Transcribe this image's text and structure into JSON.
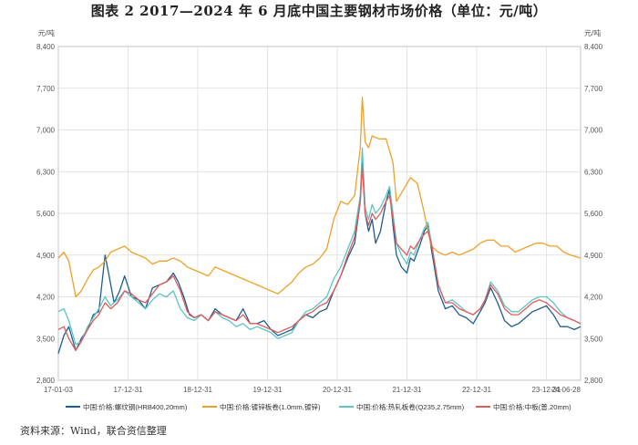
{
  "title": "图表 2   2017—2024 年 6 月底中国主要钢材市场价格（单位：元/吨）",
  "source": "资料来源：Wind，联合资信整理",
  "chart_data": {
    "type": "line",
    "unit_left": "元/吨",
    "unit_right": "元/吨",
    "ylim": [
      2800,
      8400
    ],
    "yticks": [
      "2,800",
      "3,500",
      "4,200",
      "4,900",
      "5,600",
      "6,300",
      "7,000",
      "7,700",
      "8,400"
    ],
    "ytick_values": [
      2800,
      3500,
      4200,
      4900,
      5600,
      6300,
      7000,
      7700,
      8400
    ],
    "xticks": [
      "17-01-03",
      "17-12-31",
      "18-12-31",
      "19-12-31",
      "20-12-31",
      "21-12-31",
      "22-12-31",
      "23-12-31",
      "24-06-28"
    ],
    "xtick_values": [
      2017.0,
      2018.0,
      2019.0,
      2020.0,
      2021.0,
      2022.0,
      2023.0,
      2024.0,
      2024.49
    ],
    "xlim": [
      2017.0,
      2024.49
    ],
    "grid": true,
    "legend_position": "bottom",
    "series": [
      {
        "name": "中国:价格:螺纹钢(HRB400,20mm)",
        "color": "#1f5d8f",
        "x": [
          2017.0,
          2017.08,
          2017.15,
          2017.25,
          2017.33,
          2017.42,
          2017.5,
          2017.58,
          2017.67,
          2017.72,
          2017.8,
          2017.88,
          2017.95,
          2018.05,
          2018.15,
          2018.25,
          2018.35,
          2018.45,
          2018.55,
          2018.65,
          2018.72,
          2018.8,
          2018.88,
          2018.95,
          2019.05,
          2019.15,
          2019.25,
          2019.35,
          2019.45,
          2019.55,
          2019.65,
          2019.75,
          2019.85,
          2019.95,
          2020.05,
          2020.15,
          2020.25,
          2020.35,
          2020.45,
          2020.55,
          2020.65,
          2020.75,
          2020.85,
          2020.95,
          2021.05,
          2021.15,
          2021.25,
          2021.33,
          2021.36,
          2021.4,
          2021.45,
          2021.5,
          2021.55,
          2021.62,
          2021.7,
          2021.75,
          2021.8,
          2021.85,
          2021.92,
          2022.0,
          2022.05,
          2022.1,
          2022.18,
          2022.25,
          2022.3,
          2022.35,
          2022.45,
          2022.55,
          2022.65,
          2022.75,
          2022.85,
          2022.95,
          2023.05,
          2023.12,
          2023.2,
          2023.3,
          2023.4,
          2023.5,
          2023.6,
          2023.7,
          2023.8,
          2023.9,
          2024.0,
          2024.1,
          2024.2,
          2024.3,
          2024.4,
          2024.49
        ],
        "y": [
          3250,
          3550,
          3700,
          3300,
          3500,
          3650,
          3900,
          3950,
          4900,
          4600,
          4100,
          4300,
          4550,
          4200,
          4150,
          4000,
          4350,
          4400,
          4450,
          4600,
          4450,
          4200,
          3900,
          3850,
          3900,
          3800,
          4000,
          3900,
          3850,
          3800,
          4000,
          3750,
          3750,
          3800,
          3650,
          3550,
          3600,
          3650,
          3800,
          3900,
          3850,
          3950,
          4000,
          4300,
          4550,
          4850,
          5100,
          5800,
          6500,
          5600,
          5300,
          5500,
          5100,
          5300,
          5800,
          6000,
          5400,
          4900,
          4700,
          4600,
          4850,
          4800,
          5050,
          5300,
          5400,
          5000,
          4300,
          4000,
          4050,
          3900,
          3850,
          3750,
          3950,
          4100,
          4350,
          4100,
          3800,
          3700,
          3750,
          3850,
          3950,
          4000,
          4050,
          3900,
          3700,
          3700,
          3650,
          3700
        ]
      },
      {
        "name": "中国:价格:镀锌板卷(1.0mm,镀锌)",
        "color": "#f0a028",
        "x": [
          2017.0,
          2017.08,
          2017.15,
          2017.25,
          2017.33,
          2017.42,
          2017.5,
          2017.58,
          2017.67,
          2017.75,
          2017.85,
          2017.95,
          2018.05,
          2018.15,
          2018.25,
          2018.35,
          2018.45,
          2018.55,
          2018.65,
          2018.75,
          2018.85,
          2018.95,
          2019.05,
          2019.15,
          2019.25,
          2019.35,
          2019.45,
          2019.55,
          2019.65,
          2019.75,
          2019.85,
          2019.95,
          2020.05,
          2020.15,
          2020.25,
          2020.35,
          2020.45,
          2020.55,
          2020.65,
          2020.75,
          2020.85,
          2020.95,
          2021.05,
          2021.15,
          2021.25,
          2021.33,
          2021.36,
          2021.4,
          2021.45,
          2021.5,
          2021.6,
          2021.7,
          2021.8,
          2021.85,
          2021.95,
          2022.05,
          2022.15,
          2022.25,
          2022.3,
          2022.35,
          2022.45,
          2022.55,
          2022.65,
          2022.75,
          2022.85,
          2022.95,
          2023.05,
          2023.15,
          2023.25,
          2023.35,
          2023.45,
          2023.55,
          2023.65,
          2023.75,
          2023.85,
          2023.95,
          2024.05,
          2024.15,
          2024.25,
          2024.35,
          2024.49
        ],
        "y": [
          4850,
          4950,
          4800,
          4200,
          4300,
          4500,
          4650,
          4700,
          4800,
          4950,
          5000,
          5050,
          4950,
          4900,
          4850,
          4750,
          4800,
          4800,
          4850,
          4800,
          4700,
          4650,
          4600,
          4550,
          4700,
          4650,
          4600,
          4550,
          4500,
          4450,
          4400,
          4350,
          4300,
          4250,
          4350,
          4450,
          4600,
          4700,
          4750,
          4850,
          5000,
          5500,
          5800,
          5750,
          5900,
          6700,
          7550,
          6800,
          6700,
          6900,
          6850,
          6850,
          6450,
          5800,
          6000,
          6200,
          6100,
          5600,
          5300,
          5050,
          4950,
          4900,
          4950,
          4900,
          4950,
          5000,
          5100,
          5150,
          5150,
          5050,
          5050,
          4950,
          5000,
          5050,
          5100,
          5100,
          5050,
          5050,
          4950,
          4900,
          4850
        ]
      },
      {
        "name": "中国:价格:热轧板卷(Q235,2.75mm)",
        "color": "#5cc4c4",
        "x": [
          2017.0,
          2017.08,
          2017.15,
          2017.25,
          2017.33,
          2017.42,
          2017.5,
          2017.58,
          2017.67,
          2017.75,
          2017.85,
          2017.95,
          2018.05,
          2018.15,
          2018.25,
          2018.35,
          2018.45,
          2018.55,
          2018.65,
          2018.75,
          2018.85,
          2018.95,
          2019.05,
          2019.15,
          2019.25,
          2019.35,
          2019.45,
          2019.55,
          2019.65,
          2019.75,
          2019.85,
          2019.95,
          2020.05,
          2020.15,
          2020.25,
          2020.35,
          2020.45,
          2020.55,
          2020.65,
          2020.75,
          2020.85,
          2020.95,
          2021.05,
          2021.15,
          2021.25,
          2021.33,
          2021.36,
          2021.4,
          2021.45,
          2021.5,
          2021.55,
          2021.62,
          2021.7,
          2021.75,
          2021.8,
          2021.85,
          2021.92,
          2022.0,
          2022.05,
          2022.1,
          2022.18,
          2022.25,
          2022.3,
          2022.35,
          2022.45,
          2022.55,
          2022.65,
          2022.75,
          2022.85,
          2022.95,
          2023.05,
          2023.12,
          2023.2,
          2023.3,
          2023.4,
          2023.5,
          2023.6,
          2023.7,
          2023.8,
          2023.9,
          2024.0,
          2024.1,
          2024.2,
          2024.3,
          2024.4,
          2024.49
        ],
        "y": [
          3950,
          4000,
          3800,
          3400,
          3450,
          3700,
          3850,
          4000,
          4200,
          4050,
          4150,
          4300,
          4200,
          4100,
          4000,
          4150,
          4250,
          4200,
          4300,
          4000,
          3850,
          3800,
          3900,
          3800,
          3950,
          3850,
          3800,
          3700,
          3750,
          3650,
          3700,
          3650,
          3600,
          3500,
          3550,
          3600,
          3800,
          3950,
          4000,
          4100,
          4200,
          4500,
          4700,
          5000,
          5300,
          5900,
          6700,
          5700,
          5500,
          5750,
          5600,
          5700,
          5900,
          6050,
          5600,
          5100,
          4900,
          4750,
          4950,
          4900,
          5150,
          5350,
          5450,
          5100,
          4400,
          4100,
          4150,
          4050,
          3950,
          3900,
          4000,
          4150,
          4450,
          4300,
          4050,
          3950,
          3950,
          4050,
          4150,
          4200,
          4200,
          4100,
          3950,
          3850,
          3800,
          3750
        ]
      },
      {
        "name": "中国:价格:中板(普,20mm)",
        "color": "#e05a5a",
        "x": [
          2017.0,
          2017.08,
          2017.15,
          2017.25,
          2017.33,
          2017.42,
          2017.5,
          2017.58,
          2017.67,
          2017.75,
          2017.85,
          2017.95,
          2018.05,
          2018.15,
          2018.25,
          2018.35,
          2018.45,
          2018.55,
          2018.65,
          2018.75,
          2018.85,
          2018.95,
          2019.05,
          2019.15,
          2019.25,
          2019.35,
          2019.45,
          2019.55,
          2019.65,
          2019.75,
          2019.85,
          2019.95,
          2020.05,
          2020.15,
          2020.25,
          2020.35,
          2020.45,
          2020.55,
          2020.65,
          2020.75,
          2020.85,
          2020.95,
          2021.05,
          2021.15,
          2021.25,
          2021.33,
          2021.36,
          2021.4,
          2021.45,
          2021.5,
          2021.55,
          2021.62,
          2021.7,
          2021.75,
          2021.8,
          2021.85,
          2021.92,
          2022.0,
          2022.05,
          2022.1,
          2022.18,
          2022.25,
          2022.3,
          2022.35,
          2022.45,
          2022.55,
          2022.65,
          2022.75,
          2022.85,
          2022.95,
          2023.05,
          2023.12,
          2023.2,
          2023.3,
          2023.4,
          2023.5,
          2023.6,
          2023.7,
          2023.8,
          2023.9,
          2024.0,
          2024.1,
          2024.2,
          2024.3,
          2024.4,
          2024.49
        ],
        "y": [
          3650,
          3700,
          3500,
          3300,
          3450,
          3650,
          3800,
          3900,
          4100,
          4000,
          4100,
          4300,
          4250,
          4150,
          4100,
          4250,
          4400,
          4450,
          4550,
          4300,
          3950,
          3850,
          3900,
          3800,
          3950,
          3900,
          3850,
          3800,
          3900,
          3750,
          3750,
          3700,
          3650,
          3600,
          3650,
          3700,
          3800,
          3900,
          3950,
          4050,
          4100,
          4300,
          4550,
          4900,
          5200,
          5800,
          6400,
          5600,
          5400,
          5600,
          5500,
          5600,
          5800,
          5900,
          5500,
          5100,
          5000,
          4900,
          5050,
          5000,
          5150,
          5250,
          5300,
          5100,
          4400,
          4100,
          4100,
          4000,
          3950,
          3900,
          4000,
          4150,
          4400,
          4250,
          4000,
          3900,
          3900,
          4000,
          4100,
          4150,
          4100,
          4000,
          3900,
          3850,
          3800,
          3750
        ]
      }
    ]
  }
}
